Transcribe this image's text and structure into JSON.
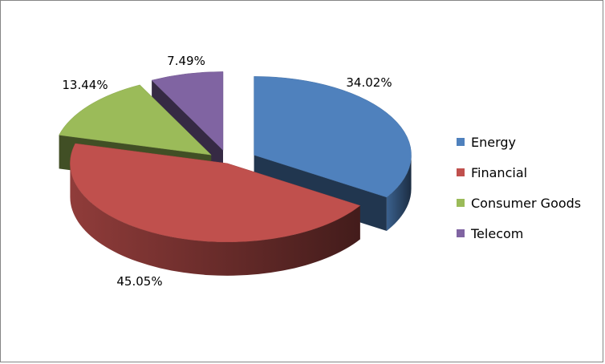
{
  "chart_data": {
    "type": "pie",
    "style": "3d-exploded",
    "title": "",
    "legend_position": "right",
    "series": [
      {
        "name": "Energy",
        "value": 34.02,
        "label": "34.02%",
        "color": "#4F81BD"
      },
      {
        "name": "Financial",
        "value": 45.05,
        "label": "45.05%",
        "color": "#C0504D"
      },
      {
        "name": "Consumer Goods",
        "value": 13.44,
        "label": "13.44%",
        "color": "#9BBB59"
      },
      {
        "name": "Telecom",
        "value": 7.49,
        "label": "7.49%",
        "color": "#8064A2"
      }
    ]
  }
}
